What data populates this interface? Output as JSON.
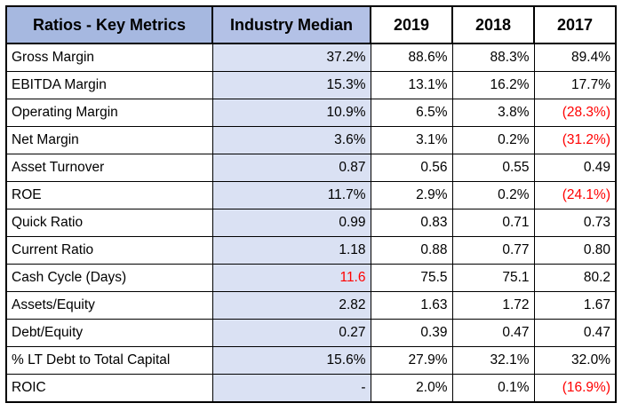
{
  "table": {
    "headers": [
      "Ratios - Key Metrics",
      "Industry Median",
      "2019",
      "2018",
      "2017"
    ],
    "rows": [
      {
        "name": "Gross Margin",
        "median": "37.2%",
        "y2019": "88.6%",
        "y2018": "88.3%",
        "y2017": "89.4%"
      },
      {
        "name": "EBITDA Margin",
        "median": "15.3%",
        "y2019": "13.1%",
        "y2018": "16.2%",
        "y2017": "17.7%"
      },
      {
        "name": "Operating Margin",
        "median": "10.9%",
        "y2019": "6.5%",
        "y2018": "3.8%",
        "y2017": "(28.3%)"
      },
      {
        "name": "Net Margin",
        "median": "3.6%",
        "y2019": "3.1%",
        "y2018": "0.2%",
        "y2017": "(31.2%)"
      },
      {
        "name": "Asset Turnover",
        "median": "0.87",
        "y2019": "0.56",
        "y2018": "0.55",
        "y2017": "0.49"
      },
      {
        "name": "ROE",
        "median": "11.7%",
        "y2019": "2.9%",
        "y2018": "0.2%",
        "y2017": "(24.1%)"
      },
      {
        "name": "Quick Ratio",
        "median": "0.99",
        "y2019": "0.83",
        "y2018": "0.71",
        "y2017": "0.73"
      },
      {
        "name": "Current Ratio",
        "median": "1.18",
        "y2019": "0.88",
        "y2018": "0.77",
        "y2017": "0.80"
      },
      {
        "name": "Cash Cycle (Days)",
        "median": "11.6",
        "y2019": "75.5",
        "y2018": "75.1",
        "y2017": "80.2"
      },
      {
        "name": "Assets/Equity",
        "median": "2.82",
        "y2019": "1.63",
        "y2018": "1.72",
        "y2017": "1.67"
      },
      {
        "name": "Debt/Equity",
        "median": "0.27",
        "y2019": "0.39",
        "y2018": "0.47",
        "y2017": "0.47"
      },
      {
        "name": "% LT Debt to Total Capital",
        "median": "15.6%",
        "y2019": "27.9%",
        "y2018": "32.1%",
        "y2017": "32.0%"
      },
      {
        "name": "ROIC",
        "median": "-",
        "y2019": "2.0%",
        "y2018": "0.1%",
        "y2017": "(16.9%)"
      }
    ]
  },
  "colors": {
    "header_name_bg": "#a6b8e0",
    "header_median_bg": "#b3c1e6",
    "median_bg": "#dae1f3",
    "negative": "#ff0000"
  }
}
